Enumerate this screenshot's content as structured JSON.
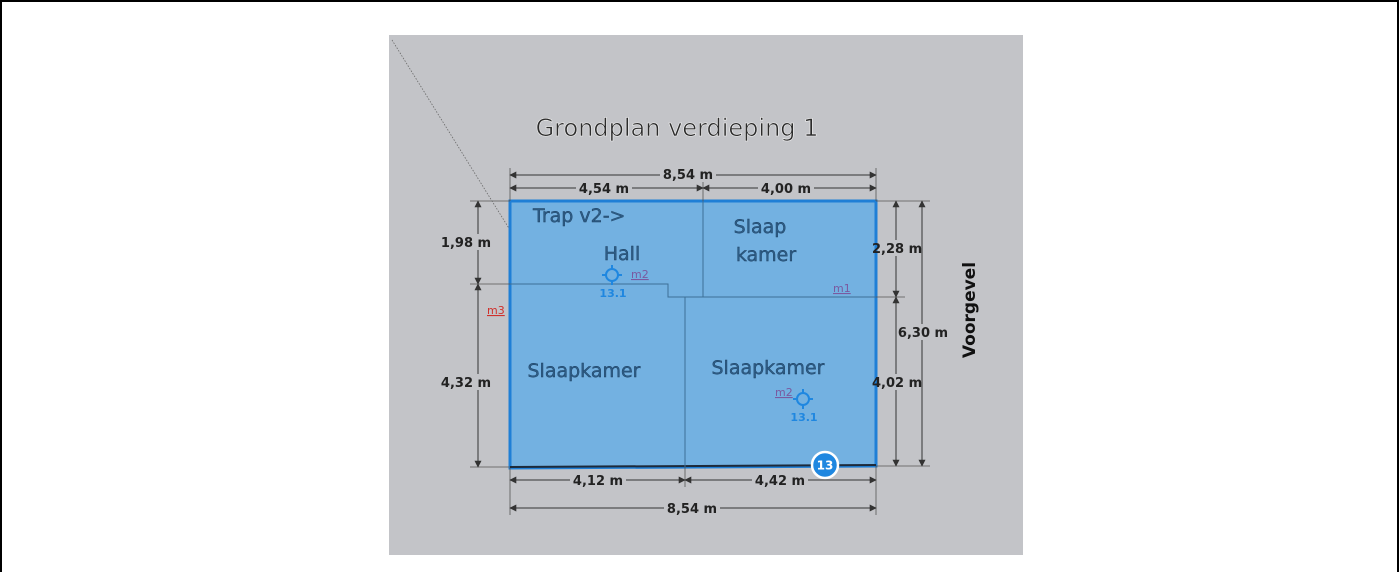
{
  "title": "Grondplan verdieping 1",
  "rooms": {
    "trap": "Trap v2->",
    "hall": "Hall",
    "slaap_line1": "Slaap",
    "slaap_line2": "kamer",
    "slaapkamer_left": "Slaapkamer",
    "slaapkamer_right": "Slaapkamer"
  },
  "dimensions": {
    "top_total": "8,54 m",
    "top_left": "4,54 m",
    "top_right": "4,00 m",
    "left_top": "1,98 m",
    "left_bottom": "4,32 m",
    "right_top": "2,28 m",
    "right_bottom": "4,02 m",
    "right_total": "6,30 m",
    "bottom_left": "4,12 m",
    "bottom_right": "4,42 m",
    "bottom_total": "8,54 m"
  },
  "facade_label": "Voorgevel",
  "markers": {
    "m1": "m1",
    "m2_top": "m2",
    "m2_bottom": "m2",
    "m3": "m3"
  },
  "tags": {
    "hall": "13.1",
    "slaapkamer": "13.1"
  },
  "badge": "13",
  "colors": {
    "background": "#c3c4c8",
    "plan_fill": "#6fb0e3",
    "plan_outline": "#1f7fd6",
    "marker_red": "#d0302b",
    "marker_purple": "#7a5aa0",
    "target_blue": "#1f87e0",
    "badge_blue": "#1f87e0"
  }
}
